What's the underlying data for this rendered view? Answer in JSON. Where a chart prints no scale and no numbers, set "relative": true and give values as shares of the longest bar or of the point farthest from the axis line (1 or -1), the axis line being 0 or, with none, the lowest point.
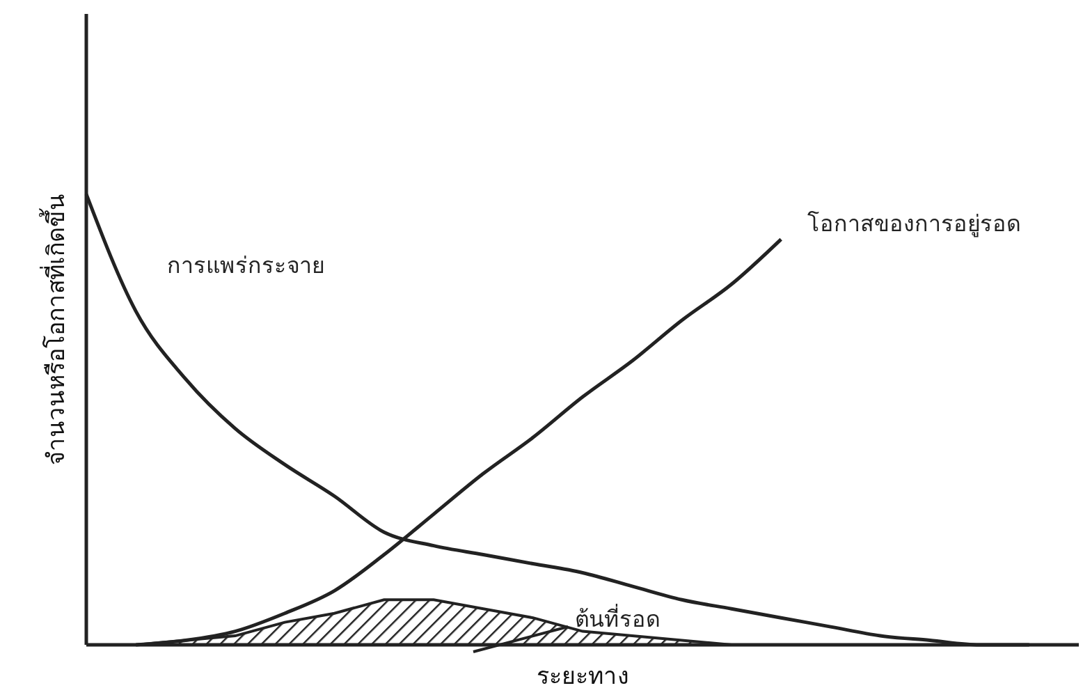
{
  "chart_data": {
    "type": "line",
    "relative": true,
    "xlabel": "ระยะทาง",
    "ylabel": "จำนวนหรือโอกาสที่เกิดขึ้น",
    "categories": [
      null,
      null,
      null,
      null,
      null,
      null,
      null,
      null,
      null,
      null,
      null,
      null,
      null,
      null,
      null,
      null,
      null,
      null,
      null,
      null,
      null
    ],
    "series": [
      {
        "name": "การแพร่กระจาย",
        "color": "#222222",
        "values": [
          1,
          0.74,
          0.59,
          0.48,
          0.4,
          0.33,
          0.25,
          0.22,
          0.2,
          0.18,
          0.16,
          0.13,
          0.1,
          0.08,
          0.06,
          0.04,
          0.02,
          0.01,
          0,
          0,
          null
        ]
      },
      {
        "name": "โอกาสของการอยู่รอด",
        "color": "#222222",
        "values": [
          null,
          0,
          0.01,
          0.03,
          0.07,
          0.12,
          0.2,
          0.29,
          0.38,
          0.46,
          0.55,
          0.63,
          0.72,
          0.8,
          0.9,
          null,
          null,
          null,
          null,
          null,
          null
        ]
      },
      {
        "name": "ต้นที่รอด",
        "type": "area",
        "color": "#222222",
        "values": [
          null,
          0,
          0.01,
          0.02,
          0.05,
          0.07,
          0.1,
          0.1,
          0.08,
          0.06,
          0.03,
          0.02,
          0.01,
          0,
          null,
          null,
          null,
          null,
          null,
          null,
          null
        ]
      }
    ],
    "marker": "none",
    "line_style": "solid"
  }
}
